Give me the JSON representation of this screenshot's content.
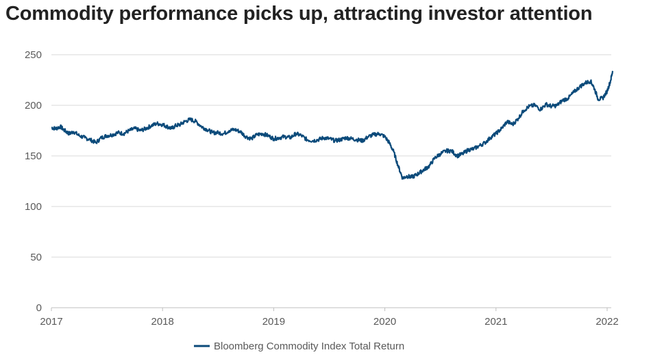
{
  "chart_data": {
    "type": "line",
    "title": "Commodity performance picks up, attracting investor attention",
    "xlabel": "",
    "ylabel": "",
    "ylim": [
      0,
      250
    ],
    "xlim": [
      2017,
      2022.05
    ],
    "y_ticks": [
      "0",
      "50",
      "100",
      "150",
      "200",
      "250"
    ],
    "x_ticks": [
      "2017",
      "2018",
      "2019",
      "2020",
      "2021",
      "2022"
    ],
    "grid": "horizontal",
    "legend_position": "bottom-center",
    "colors": {
      "series": "#0b4a7a",
      "grid": "#d9d9d9",
      "axis": "#bfbfbf",
      "text": "#595959"
    },
    "series": [
      {
        "name": "Bloomberg Commodity Index Total Return",
        "x": [
          2017.0,
          2017.04,
          2017.08,
          2017.12,
          2017.16,
          2017.2,
          2017.25,
          2017.3,
          2017.35,
          2017.4,
          2017.45,
          2017.5,
          2017.55,
          2017.6,
          2017.65,
          2017.7,
          2017.75,
          2017.8,
          2017.85,
          2017.9,
          2017.95,
          2018.0,
          2018.04,
          2018.08,
          2018.12,
          2018.16,
          2018.2,
          2018.25,
          2018.3,
          2018.35,
          2018.4,
          2018.45,
          2018.5,
          2018.55,
          2018.6,
          2018.65,
          2018.7,
          2018.75,
          2018.8,
          2018.85,
          2018.9,
          2018.95,
          2019.0,
          2019.05,
          2019.1,
          2019.15,
          2019.2,
          2019.25,
          2019.3,
          2019.35,
          2019.4,
          2019.45,
          2019.5,
          2019.55,
          2019.6,
          2019.65,
          2019.7,
          2019.75,
          2019.8,
          2019.85,
          2019.9,
          2019.95,
          2020.0,
          2020.04,
          2020.08,
          2020.12,
          2020.16,
          2020.2,
          2020.24,
          2020.28,
          2020.32,
          2020.36,
          2020.4,
          2020.45,
          2020.5,
          2020.55,
          2020.6,
          2020.65,
          2020.7,
          2020.75,
          2020.8,
          2020.85,
          2020.9,
          2020.95,
          2021.0,
          2021.05,
          2021.1,
          2021.15,
          2021.2,
          2021.25,
          2021.3,
          2021.35,
          2021.4,
          2021.45,
          2021.5,
          2021.55,
          2021.6,
          2021.65,
          2021.7,
          2021.75,
          2021.8,
          2021.85,
          2021.88,
          2021.92,
          2021.96,
          2022.0,
          2022.03,
          2022.05
        ],
        "values": [
          178,
          177,
          179,
          175,
          172,
          174,
          170,
          168,
          166,
          163,
          168,
          170,
          171,
          173,
          172,
          175,
          177,
          175,
          177,
          180,
          182,
          181,
          179,
          177,
          180,
          181,
          184,
          186,
          184,
          179,
          176,
          173,
          173,
          172,
          175,
          176,
          174,
          169,
          167,
          171,
          172,
          170,
          167,
          168,
          169,
          168,
          172,
          170,
          166,
          165,
          166,
          168,
          167,
          165,
          166,
          168,
          167,
          166,
          165,
          169,
          171,
          172,
          169,
          163,
          154,
          140,
          128,
          130,
          129,
          131,
          134,
          137,
          140,
          148,
          152,
          155,
          155,
          150,
          152,
          156,
          157,
          160,
          163,
          168,
          172,
          177,
          184,
          181,
          187,
          195,
          199,
          200,
          196,
          201,
          199,
          200,
          205,
          207,
          213,
          218,
          222,
          224,
          218,
          206,
          207,
          214,
          224,
          234
        ]
      }
    ]
  }
}
